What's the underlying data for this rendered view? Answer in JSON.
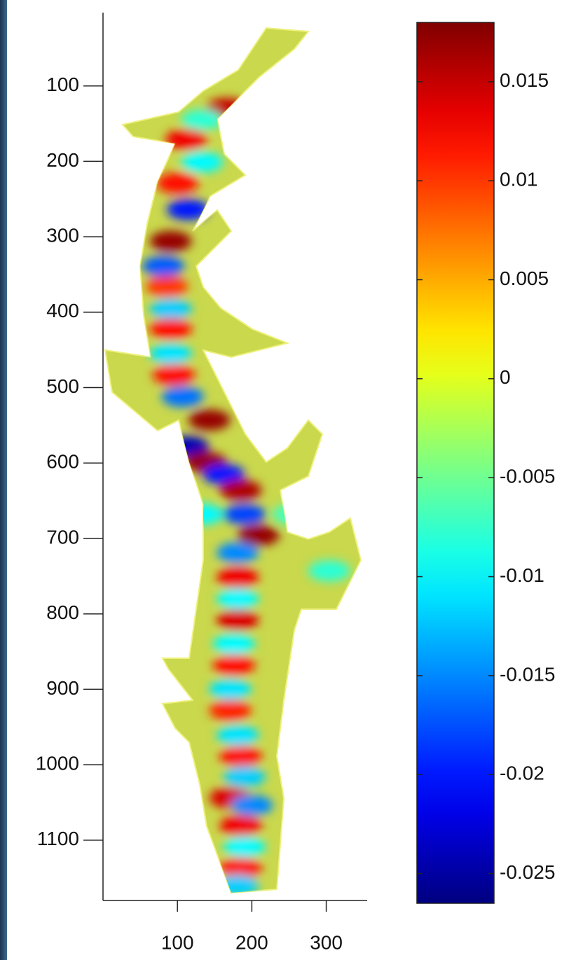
{
  "chart_data": {
    "type": "heatmap",
    "colormap": "jet",
    "y_reversed": true,
    "x": [
      166,
      133,
      112,
      133,
      100,
      114,
      91,
      81,
      86,
      91,
      91,
      91,
      95,
      107,
      143,
      114,
      138,
      162,
      185,
      133,
      190,
      209,
      181,
      181,
      181,
      181,
      176,
      176,
      171,
      171,
      181,
      185,
      190,
      171,
      200,
      185,
      190,
      185,
      181,
      304,
      256
    ],
    "y": [
      130,
      145,
      171,
      201,
      229,
      264,
      306,
      339,
      366,
      396,
      422,
      455,
      483,
      512,
      543,
      578,
      599,
      615,
      636,
      668,
      668,
      696,
      719,
      752,
      780,
      808,
      840,
      868,
      900,
      928,
      961,
      989,
      1016,
      1044,
      1054,
      1081,
      1109,
      1137,
      1160,
      743,
      668
    ],
    "values": [
      0.015,
      -0.008,
      0.013,
      -0.01,
      0.012,
      -0.02,
      0.017,
      -0.017,
      0.01,
      -0.012,
      0.012,
      -0.011,
      0.012,
      -0.016,
      0.017,
      -0.024,
      0.017,
      -0.02,
      0.016,
      -0.01,
      -0.018,
      0.017,
      -0.015,
      0.013,
      -0.01,
      0.014,
      -0.01,
      0.012,
      -0.011,
      0.011,
      -0.011,
      0.012,
      -0.012,
      0.014,
      -0.015,
      0.013,
      -0.01,
      0.012,
      -0.012,
      -0.008,
      -0.007
    ],
    "xlim": [
      0,
      355
    ],
    "ylim": [
      0,
      1180
    ],
    "xticks": [
      100,
      200,
      300
    ],
    "yticks": [
      100,
      200,
      300,
      400,
      500,
      600,
      700,
      800,
      900,
      1000,
      1100
    ],
    "clim": [
      -0.0265,
      0.018
    ],
    "cticks": [
      0.015,
      0.01,
      0.005,
      0,
      -0.005,
      -0.01,
      -0.015,
      -0.02,
      -0.025
    ]
  }
}
